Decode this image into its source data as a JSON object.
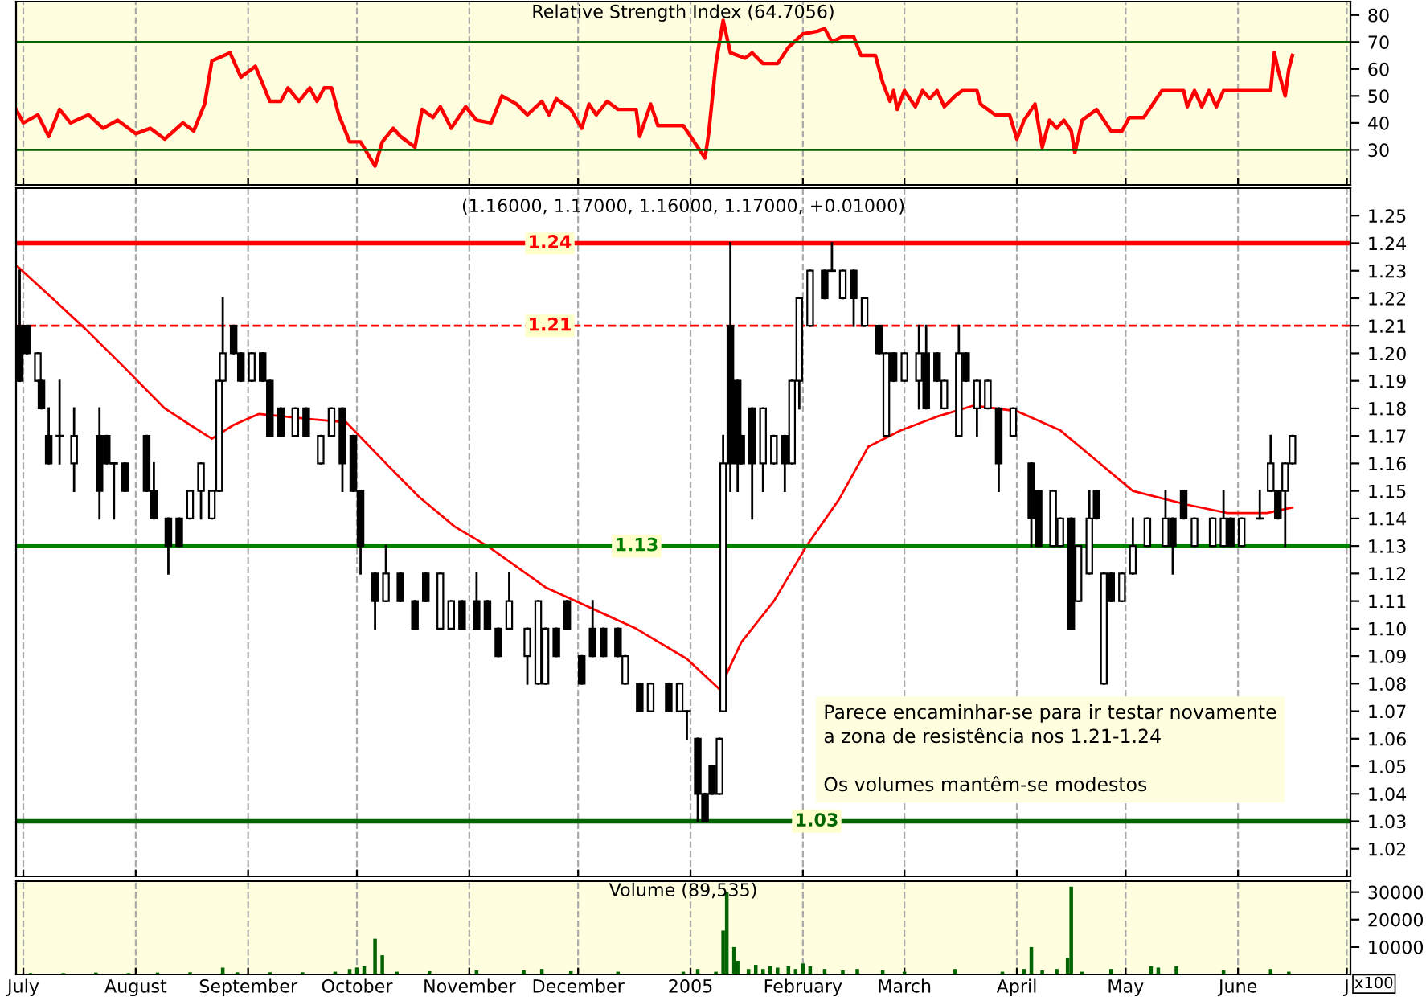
{
  "chart_data": [
    {
      "type": "line",
      "title": "Relative Strength Index (64.7056)",
      "xlim": [
        "2004-06-29",
        "2005-07-02"
      ],
      "ylim": [
        17,
        85
      ],
      "yticks": [
        30,
        40,
        50,
        60,
        70,
        80
      ],
      "grid": "x",
      "tick_labels": "y",
      "ref_lines": [
        {
          "axis": "y",
          "value": 70,
          "color": "#006400"
        },
        {
          "axis": "y",
          "value": 30,
          "color": "#006400"
        }
      ],
      "xticks": [
        {
          "value": "2004-07-01",
          "label": null
        },
        {
          "value": "2004-08-01",
          "label": null
        },
        {
          "value": "2004-09-01",
          "label": null
        },
        {
          "value": "2004-10-01",
          "label": null
        },
        {
          "value": "2004-11-01",
          "label": null
        },
        {
          "value": "2004-12-01",
          "label": null
        },
        {
          "value": "2005-01-01",
          "label": null
        },
        {
          "value": "2005-02-01",
          "label": null
        },
        {
          "value": "2005-03-01",
          "label": null
        },
        {
          "value": "2005-04-01",
          "label": null
        },
        {
          "value": "2005-05-01",
          "label": null
        },
        {
          "value": "2005-06-01",
          "label": null
        },
        {
          "value": "2005-07-01",
          "label": null
        }
      ],
      "series": [
        {
          "color": "#ff0000",
          "x": [
            "2004-06-29",
            "2004-07-01",
            "2004-07-05",
            "2004-07-08",
            "2004-07-11",
            "2004-07-14",
            "2004-07-19",
            "2004-07-23",
            "2004-07-27",
            "2004-08-01",
            "2004-08-05",
            "2004-08-09",
            "2004-08-14",
            "2004-08-17",
            "2004-08-20",
            "2004-08-22",
            "2004-08-27",
            "2004-08-30",
            "2004-09-03",
            "2004-09-07",
            "2004-09-10",
            "2004-09-12",
            "2004-09-15",
            "2004-09-18",
            "2004-09-20",
            "2004-09-22",
            "2004-09-24",
            "2004-09-26",
            "2004-09-29",
            "2004-10-02",
            "2004-10-06",
            "2004-10-08",
            "2004-10-11",
            "2004-10-13",
            "2004-10-17",
            "2004-10-19",
            "2004-10-22",
            "2004-10-24",
            "2004-10-27",
            "2004-10-31",
            "2004-11-03",
            "2004-11-07",
            "2004-11-10",
            "2004-11-14",
            "2004-11-17",
            "2004-11-21",
            "2004-11-23",
            "2004-11-25",
            "2004-11-29",
            "2004-12-02",
            "2004-12-04",
            "2004-12-06",
            "2004-12-09",
            "2004-12-12",
            "2004-12-17",
            "2004-12-18",
            "2004-12-21",
            "2004-12-23",
            "2004-12-30",
            "2005-01-05",
            "2005-01-06",
            "2005-01-08",
            "2005-01-10",
            "2005-01-12",
            "2005-01-16",
            "2005-01-18",
            "2005-01-21",
            "2005-01-25",
            "2005-01-28",
            "2005-02-01",
            "2005-02-05",
            "2005-02-07",
            "2005-02-09",
            "2005-02-12",
            "2005-02-15",
            "2005-02-17",
            "2005-02-21",
            "2005-02-23",
            "2005-02-25",
            "2005-02-26",
            "2005-02-27",
            "2005-03-01",
            "2005-03-04",
            "2005-03-06",
            "2005-03-08",
            "2005-03-10",
            "2005-03-12",
            "2005-03-15",
            "2005-03-17",
            "2005-03-21",
            "2005-03-22",
            "2005-03-26",
            "2005-03-30",
            "2005-04-01",
            "2005-04-03",
            "2005-04-06",
            "2005-04-08",
            "2005-04-10",
            "2005-04-12",
            "2005-04-14",
            "2005-04-16",
            "2005-04-17",
            "2005-04-19",
            "2005-04-23",
            "2005-04-27",
            "2005-04-30",
            "2005-05-02",
            "2005-05-06",
            "2005-05-08",
            "2005-05-11",
            "2005-05-17",
            "2005-05-18",
            "2005-05-20",
            "2005-05-22",
            "2005-05-24",
            "2005-05-26",
            "2005-05-28",
            "2005-06-10",
            "2005-06-11",
            "2005-06-12",
            "2005-06-14",
            "2005-06-15",
            "2005-06-16"
          ],
          "values": [
            45,
            40,
            43,
            35,
            45,
            40,
            43,
            38,
            41,
            36,
            38,
            34,
            40,
            37,
            47,
            63,
            66,
            57,
            61,
            48,
            48,
            53,
            48,
            53,
            48,
            53,
            53,
            43,
            33,
            33,
            24,
            33,
            38,
            35,
            31,
            45,
            42,
            46,
            38,
            46,
            41,
            40,
            50,
            47,
            43,
            48,
            43,
            49,
            45,
            38,
            47,
            43,
            48,
            45,
            45,
            35,
            47,
            39,
            39,
            27,
            36,
            62,
            78,
            66,
            64,
            66,
            62,
            62,
            68,
            73,
            74,
            75,
            70,
            72,
            72,
            65,
            65,
            55,
            48,
            52,
            45,
            52,
            46,
            52,
            49,
            52,
            46,
            50,
            52,
            52,
            47,
            43,
            43,
            34,
            41,
            47,
            31,
            41,
            38,
            41,
            37,
            29,
            41,
            45,
            37,
            37,
            42,
            42,
            46,
            52,
            52,
            46,
            52,
            46,
            52,
            46,
            52,
            52,
            66,
            60,
            50,
            60,
            65
          ]
        }
      ]
    },
    {
      "type": "candlestick",
      "title": "(1.16000, 1.17000, 1.16000, 1.17000, +0.01000)",
      "xlim": [
        "2004-06-29",
        "2005-07-02"
      ],
      "ylim": [
        1.01,
        1.26
      ],
      "grid": "x",
      "tick_labels": "y",
      "yticks": [
        1.02,
        1.03,
        1.04,
        1.05,
        1.06,
        1.07,
        1.08,
        1.09,
        {
          "value": 1.1,
          "label": "1.10"
        },
        1.11,
        1.12,
        1.13,
        1.14,
        1.15,
        1.16,
        1.17,
        1.18,
        1.19,
        {
          "value": 1.2,
          "label": "1.20"
        },
        1.21,
        1.22,
        1.23,
        1.24,
        1.25
      ],
      "xticks": [
        {
          "value": "2004-07-01",
          "label": null
        },
        {
          "value": "2004-08-01",
          "label": null
        },
        {
          "value": "2004-09-01",
          "label": null
        },
        {
          "value": "2004-10-01",
          "label": null
        },
        {
          "value": "2004-11-01",
          "label": null
        },
        {
          "value": "2004-12-01",
          "label": null
        },
        {
          "value": "2005-01-01",
          "label": null
        },
        {
          "value": "2005-02-01",
          "label": null
        },
        {
          "value": "2005-03-01",
          "label": null
        },
        {
          "value": "2005-04-01",
          "label": null
        },
        {
          "value": "2005-05-01",
          "label": null
        },
        {
          "value": "2005-06-01",
          "label": null
        },
        {
          "value": "2005-07-01",
          "label": null
        }
      ],
      "ref_lines": [
        {
          "axis": "y",
          "value": 1.24,
          "label": "1.24",
          "color": "#ff0000",
          "line_style": "solid"
        },
        {
          "axis": "y",
          "value": 1.21,
          "label": "1.21",
          "color": "#ff0000",
          "line_style": "dashed"
        },
        {
          "axis": "y",
          "value": 1.13,
          "label": "1.13",
          "color": "#008000",
          "line_style": "solid"
        },
        {
          "axis": "y",
          "value": 1.03,
          "label": "1.03",
          "color": "#006400",
          "line_style": "solid"
        }
      ],
      "annotations": [
        "Parece encaminhar-se para ir testar novamente\na zona de resistência nos 1.21-1.24\n\nOs volumes mantêm-se modestos"
      ],
      "x": [
        "2004-06-30",
        "2004-07-02",
        "2004-07-05",
        "2004-07-06",
        "2004-07-08",
        "2004-07-11",
        "2004-07-15",
        "2004-07-22",
        "2004-07-24",
        "2004-07-26",
        "2004-07-29",
        "2004-08-04",
        "2004-08-06",
        "2004-08-10",
        "2004-08-13",
        "2004-08-16",
        "2004-08-19",
        "2004-08-22",
        "2004-08-24",
        "2004-08-25",
        "2004-08-28",
        "2004-08-30",
        "2004-09-02",
        "2004-09-05",
        "2004-09-07",
        "2004-09-10",
        "2004-09-14",
        "2004-09-17",
        "2004-09-21",
        "2004-09-24",
        "2004-09-27",
        "2004-09-30",
        "2004-10-02",
        "2004-10-06",
        "2004-10-09",
        "2004-10-13",
        "2004-10-17",
        "2004-10-20",
        "2004-10-24",
        "2004-10-27",
        "2004-10-30",
        "2004-11-03",
        "2004-11-06",
        "2004-11-09",
        "2004-11-12",
        "2004-11-17",
        "2004-11-20",
        "2004-11-22",
        "2004-11-25",
        "2004-11-28",
        "2004-12-02",
        "2004-12-05",
        "2004-12-08",
        "2004-12-12",
        "2004-12-14",
        "2004-12-18",
        "2004-12-21",
        "2004-12-26",
        "2004-12-29",
        "2004-12-31",
        "2005-01-03",
        "2005-01-05",
        "2005-01-07",
        "2005-01-09",
        "2005-01-10",
        "2005-01-12",
        "2005-01-14",
        "2005-01-15",
        "2005-01-18",
        "2005-01-21",
        "2005-01-24",
        "2005-01-27",
        "2005-01-29",
        "2005-01-31",
        "2005-02-03",
        "2005-02-07",
        "2005-02-09",
        "2005-02-12",
        "2005-02-15",
        "2005-02-18",
        "2005-02-22",
        "2005-02-24",
        "2005-02-26",
        "2005-03-01",
        "2005-03-05",
        "2005-03-07",
        "2005-03-10",
        "2005-03-12",
        "2005-03-16",
        "2005-03-18",
        "2005-03-21",
        "2005-03-24",
        "2005-03-27",
        "2005-03-31",
        "2005-04-05",
        "2005-04-07",
        "2005-04-11",
        "2005-04-13",
        "2005-04-16",
        "2005-04-18",
        "2005-04-21",
        "2005-04-23",
        "2005-04-25",
        "2005-04-27",
        "2005-04-30",
        "2005-05-03",
        "2005-05-07",
        "2005-05-12",
        "2005-05-14",
        "2005-05-17",
        "2005-05-20",
        "2005-05-25",
        "2005-05-28",
        "2005-05-30",
        "2005-06-02",
        "2005-06-07",
        "2005-06-10",
        "2005-06-12",
        "2005-06-14",
        "2005-06-16"
      ],
      "ohlc": [
        [
          1.21,
          1.23,
          1.19,
          1.19
        ],
        [
          1.21,
          1.21,
          1.2,
          1.2
        ],
        [
          1.19,
          1.2,
          1.19,
          1.2
        ],
        [
          1.19,
          1.19,
          1.18,
          1.18
        ],
        [
          1.17,
          1.18,
          1.16,
          1.16
        ],
        [
          1.17,
          1.19,
          1.16,
          1.17
        ],
        [
          1.16,
          1.18,
          1.15,
          1.17
        ],
        [
          1.17,
          1.18,
          1.14,
          1.15
        ],
        [
          1.17,
          1.17,
          1.16,
          1.16
        ],
        [
          1.16,
          1.16,
          1.14,
          1.16
        ],
        [
          1.16,
          1.16,
          1.15,
          1.15
        ],
        [
          1.17,
          1.17,
          1.15,
          1.15
        ],
        [
          1.15,
          1.16,
          1.14,
          1.14
        ],
        [
          1.14,
          1.14,
          1.12,
          1.13
        ],
        [
          1.14,
          1.14,
          1.13,
          1.13
        ],
        [
          1.14,
          1.15,
          1.14,
          1.15
        ],
        [
          1.15,
          1.16,
          1.14,
          1.16
        ],
        [
          1.14,
          1.15,
          1.14,
          1.15
        ],
        [
          1.15,
          1.19,
          1.15,
          1.19
        ],
        [
          1.19,
          1.22,
          1.19,
          1.2
        ],
        [
          1.21,
          1.21,
          1.2,
          1.2
        ],
        [
          1.2,
          1.2,
          1.19,
          1.19
        ],
        [
          1.19,
          1.2,
          1.19,
          1.2
        ],
        [
          1.2,
          1.2,
          1.19,
          1.19
        ],
        [
          1.19,
          1.19,
          1.17,
          1.17
        ],
        [
          1.18,
          1.18,
          1.17,
          1.17
        ],
        [
          1.17,
          1.18,
          1.17,
          1.18
        ],
        [
          1.18,
          1.18,
          1.17,
          1.17
        ],
        [
          1.16,
          1.17,
          1.16,
          1.17
        ],
        [
          1.17,
          1.18,
          1.17,
          1.18
        ],
        [
          1.18,
          1.18,
          1.15,
          1.16
        ],
        [
          1.17,
          1.17,
          1.15,
          1.15
        ],
        [
          1.15,
          1.15,
          1.12,
          1.13
        ],
        [
          1.12,
          1.12,
          1.1,
          1.11
        ],
        [
          1.11,
          1.13,
          1.11,
          1.12
        ],
        [
          1.12,
          1.12,
          1.11,
          1.11
        ],
        [
          1.11,
          1.11,
          1.1,
          1.1
        ],
        [
          1.12,
          1.12,
          1.11,
          1.11
        ],
        [
          1.1,
          1.12,
          1.1,
          1.12
        ],
        [
          1.1,
          1.11,
          1.1,
          1.11
        ],
        [
          1.11,
          1.11,
          1.1,
          1.1
        ],
        [
          1.11,
          1.12,
          1.1,
          1.1
        ],
        [
          1.11,
          1.11,
          1.1,
          1.1
        ],
        [
          1.1,
          1.1,
          1.09,
          1.09
        ],
        [
          1.1,
          1.12,
          1.1,
          1.11
        ],
        [
          1.09,
          1.1,
          1.08,
          1.1
        ],
        [
          1.08,
          1.11,
          1.08,
          1.11
        ],
        [
          1.08,
          1.1,
          1.08,
          1.1
        ],
        [
          1.1,
          1.1,
          1.09,
          1.09
        ],
        [
          1.11,
          1.11,
          1.1,
          1.1
        ],
        [
          1.09,
          1.09,
          1.08,
          1.08
        ],
        [
          1.1,
          1.11,
          1.09,
          1.09
        ],
        [
          1.1,
          1.1,
          1.09,
          1.09
        ],
        [
          1.1,
          1.1,
          1.09,
          1.09
        ],
        [
          1.08,
          1.09,
          1.08,
          1.09
        ],
        [
          1.08,
          1.08,
          1.07,
          1.07
        ],
        [
          1.07,
          1.08,
          1.07,
          1.08
        ],
        [
          1.08,
          1.08,
          1.07,
          1.07
        ],
        [
          1.07,
          1.08,
          1.07,
          1.08
        ],
        [
          1.07,
          1.07,
          1.06,
          1.07
        ],
        [
          1.06,
          1.06,
          1.03,
          1.04
        ],
        [
          1.04,
          1.04,
          1.03,
          1.03
        ],
        [
          1.05,
          1.05,
          1.04,
          1.04
        ],
        [
          1.04,
          1.06,
          1.04,
          1.06
        ],
        [
          1.07,
          1.17,
          1.07,
          1.16
        ],
        [
          1.21,
          1.24,
          1.15,
          1.16
        ],
        [
          1.19,
          1.19,
          1.15,
          1.16
        ],
        [
          1.17,
          1.17,
          1.16,
          1.16
        ],
        [
          1.18,
          1.18,
          1.14,
          1.16
        ],
        [
          1.16,
          1.18,
          1.15,
          1.18
        ],
        [
          1.16,
          1.17,
          1.16,
          1.17
        ],
        [
          1.17,
          1.17,
          1.15,
          1.16
        ],
        [
          1.16,
          1.19,
          1.16,
          1.19
        ],
        [
          1.19,
          1.22,
          1.18,
          1.22
        ],
        [
          1.21,
          1.23,
          1.21,
          1.23
        ],
        [
          1.23,
          1.23,
          1.22,
          1.22
        ],
        [
          1.23,
          1.24,
          1.23,
          1.23
        ],
        [
          1.22,
          1.23,
          1.22,
          1.23
        ],
        [
          1.23,
          1.23,
          1.21,
          1.22
        ],
        [
          1.21,
          1.22,
          1.21,
          1.22
        ],
        [
          1.21,
          1.21,
          1.2,
          1.2
        ],
        [
          1.17,
          1.2,
          1.17,
          1.2
        ],
        [
          1.2,
          1.2,
          1.19,
          1.19
        ],
        [
          1.19,
          1.2,
          1.19,
          1.2
        ],
        [
          1.19,
          1.21,
          1.18,
          1.2
        ],
        [
          1.2,
          1.21,
          1.18,
          1.18
        ],
        [
          1.2,
          1.2,
          1.19,
          1.19
        ],
        [
          1.18,
          1.19,
          1.18,
          1.19
        ],
        [
          1.17,
          1.21,
          1.17,
          1.2
        ],
        [
          1.2,
          1.2,
          1.19,
          1.19
        ],
        [
          1.18,
          1.19,
          1.17,
          1.19
        ],
        [
          1.18,
          1.19,
          1.18,
          1.19
        ],
        [
          1.18,
          1.18,
          1.15,
          1.16
        ],
        [
          1.17,
          1.18,
          1.17,
          1.18
        ],
        [
          1.16,
          1.16,
          1.13,
          1.14
        ],
        [
          1.15,
          1.15,
          1.13,
          1.13
        ],
        [
          1.13,
          1.15,
          1.13,
          1.15
        ],
        [
          1.13,
          1.14,
          1.13,
          1.14
        ],
        [
          1.14,
          1.14,
          1.1,
          1.1
        ],
        [
          1.11,
          1.13,
          1.11,
          1.13
        ],
        [
          1.12,
          1.15,
          1.12,
          1.14
        ],
        [
          1.15,
          1.15,
          1.14,
          1.14
        ],
        [
          1.08,
          1.12,
          1.08,
          1.12
        ],
        [
          1.12,
          1.12,
          1.11,
          1.11
        ],
        [
          1.11,
          1.12,
          1.11,
          1.12
        ],
        [
          1.12,
          1.14,
          1.12,
          1.13
        ],
        [
          1.13,
          1.14,
          1.13,
          1.14
        ],
        [
          1.13,
          1.15,
          1.13,
          1.14
        ],
        [
          1.14,
          1.14,
          1.12,
          1.13
        ],
        [
          1.15,
          1.15,
          1.14,
          1.14
        ],
        [
          1.13,
          1.14,
          1.13,
          1.14
        ],
        [
          1.13,
          1.14,
          1.13,
          1.14
        ],
        [
          1.13,
          1.15,
          1.13,
          1.14
        ],
        [
          1.14,
          1.14,
          1.13,
          1.13
        ],
        [
          1.13,
          1.14,
          1.13,
          1.14
        ],
        [
          1.14,
          1.15,
          1.14,
          1.14
        ],
        [
          1.15,
          1.17,
          1.15,
          1.16
        ],
        [
          1.15,
          1.15,
          1.14,
          1.14
        ],
        [
          1.15,
          1.16,
          1.13,
          1.16
        ],
        [
          1.16,
          1.17,
          1.16,
          1.17
        ]
      ],
      "series": [
        {
          "type": "line",
          "color": "#ff0000",
          "x": [
            "2004-06-29",
            "2004-07-09",
            "2004-07-18",
            "2004-07-28",
            "2004-08-09",
            "2004-08-16",
            "2004-08-22",
            "2004-08-28",
            "2004-09-04",
            "2004-09-19",
            "2004-09-28",
            "2004-10-09",
            "2004-10-18",
            "2004-10-28",
            "2004-11-06",
            "2004-11-22",
            "2004-12-02",
            "2004-12-17",
            "2004-12-31",
            "2005-01-09",
            "2005-01-15",
            "2005-01-24",
            "2005-02-02",
            "2005-02-11",
            "2005-02-19",
            "2005-02-28",
            "2005-03-10",
            "2005-03-20",
            "2005-04-01",
            "2005-04-13",
            "2005-04-23",
            "2005-05-03",
            "2005-05-18",
            "2005-05-29",
            "2005-06-09",
            "2005-06-16"
          ],
          "values": [
            1.232,
            1.22,
            1.209,
            1.196,
            1.18,
            1.174,
            1.169,
            1.174,
            1.178,
            1.176,
            1.175,
            1.16,
            1.148,
            1.137,
            1.13,
            1.115,
            1.109,
            1.1,
            1.089,
            1.078,
            1.095,
            1.11,
            1.13,
            1.147,
            1.166,
            1.172,
            1.177,
            1.181,
            1.179,
            1.172,
            1.161,
            1.15,
            1.145,
            1.142,
            1.142,
            1.144
          ]
        }
      ]
    },
    {
      "type": "bar",
      "title": "Volume (89,535)",
      "xlim": [
        "2004-06-29",
        "2005-07-02"
      ],
      "ylim": [
        0,
        34000
      ],
      "yticks": [
        10000,
        20000,
        30000
      ],
      "grid": "x",
      "color": "#006400",
      "annotations": [
        "x100"
      ],
      "xticks": [
        {
          "value": "2004-07-01",
          "label": "July"
        },
        {
          "value": "2004-08-01",
          "label": "August"
        },
        {
          "value": "2004-09-01",
          "label": "September"
        },
        {
          "value": "2004-10-01",
          "label": "October"
        },
        {
          "value": "2004-11-01",
          "label": "November"
        },
        {
          "value": "2004-12-01",
          "label": "December"
        },
        {
          "value": "2005-01-01",
          "label": "2005"
        },
        {
          "value": "2005-02-01",
          "label": "February"
        },
        {
          "value": "2005-03-01",
          "label": "March"
        },
        {
          "value": "2005-04-01",
          "label": "April"
        },
        {
          "value": "2005-05-01",
          "label": "May"
        },
        {
          "value": "2005-06-01",
          "label": "June"
        },
        {
          "value": "2005-07-01",
          "label": "J"
        }
      ],
      "x": [
        "2004-07-03",
        "2004-07-12",
        "2004-07-21",
        "2004-07-30",
        "2004-08-07",
        "2004-08-16",
        "2004-08-25",
        "2004-08-29",
        "2004-09-07",
        "2004-09-16",
        "2004-09-25",
        "2004-09-29",
        "2004-10-01",
        "2004-10-03",
        "2004-10-06",
        "2004-10-08",
        "2004-10-12",
        "2004-10-21",
        "2004-11-03",
        "2004-11-16",
        "2004-11-21",
        "2004-11-29",
        "2004-12-12",
        "2004-12-30",
        "2005-01-03",
        "2005-01-08",
        "2005-01-10",
        "2005-01-11",
        "2005-01-13",
        "2005-01-14",
        "2005-01-17",
        "2005-01-19",
        "2005-01-21",
        "2005-01-23",
        "2005-01-25",
        "2005-01-28",
        "2005-01-30",
        "2005-02-01",
        "2005-02-03",
        "2005-02-07",
        "2005-02-12",
        "2005-02-16",
        "2005-02-23",
        "2005-03-01",
        "2005-03-15",
        "2005-03-28",
        "2005-04-03",
        "2005-04-05",
        "2005-04-08",
        "2005-04-12",
        "2005-04-15",
        "2005-04-16",
        "2005-04-19",
        "2005-04-27",
        "2005-05-08",
        "2005-05-10",
        "2005-05-15",
        "2005-05-28",
        "2005-06-10",
        "2005-06-15"
      ],
      "values": [
        500,
        500,
        700,
        500,
        700,
        800,
        2500,
        800,
        800,
        800,
        1000,
        2000,
        2500,
        3000,
        13000,
        7000,
        1000,
        1200,
        1500,
        1500,
        2000,
        1200,
        1000,
        1000,
        2000,
        1000,
        16000,
        30000,
        10000,
        5000,
        2000,
        3500,
        2000,
        3000,
        2500,
        3000,
        2000,
        4000,
        3000,
        2000,
        1500,
        2000,
        1500,
        1000,
        2000,
        1000,
        2000,
        10000,
        1500,
        2000,
        6000,
        32000,
        1000,
        2000,
        3000,
        2500,
        3000,
        1500,
        2000,
        1000
      ]
    }
  ]
}
